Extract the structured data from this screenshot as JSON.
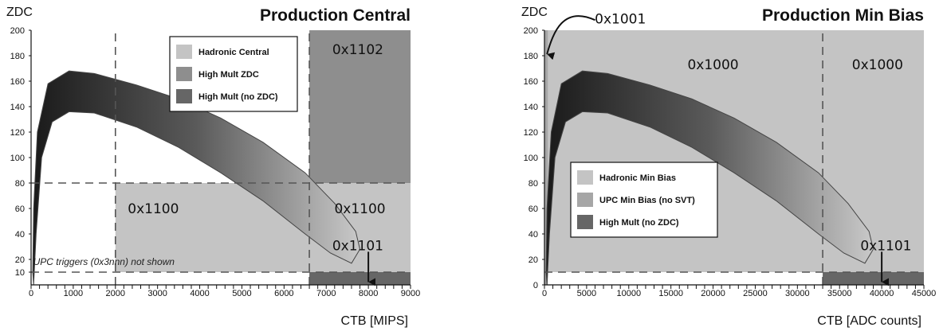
{
  "chart_data": [
    {
      "type": "area",
      "title": "Production Central",
      "xlabel": "CTB [MIPS]",
      "ylabel": "ZDC",
      "xlim": [
        0,
        9000
      ],
      "ylim": [
        0,
        200
      ],
      "x_ticks": [
        "0",
        "1000",
        "2000",
        "3000",
        "4000",
        "5000",
        "6000",
        "7000",
        "8000",
        "9000"
      ],
      "y_ticks": [
        "10",
        "20",
        "40",
        "60",
        "80",
        "100",
        "120",
        "140",
        "160",
        "180",
        "200"
      ],
      "legend": {
        "position": "top-center",
        "entries": [
          {
            "label": "Hadronic Central",
            "color": "#c4c4c4"
          },
          {
            "label": "High Mult ZDC",
            "color": "#8e8e8e"
          },
          {
            "label": "High Mult (no ZDC)",
            "color": "#666666"
          }
        ]
      },
      "regions": [
        {
          "label": "0x1100",
          "x": [
            2000,
            9000
          ],
          "y": [
            10,
            80
          ],
          "color": "#c4c4c4"
        },
        {
          "label": "0x1102",
          "x": [
            6600,
            9000
          ],
          "y": [
            80,
            200
          ],
          "color": "#8e8e8e"
        },
        {
          "label": "0x1101",
          "x": [
            6600,
            9000
          ],
          "y": [
            0,
            10
          ],
          "color": "#666666"
        }
      ],
      "region_labels": [
        {
          "text": "0x1102",
          "x": 7750,
          "y": 185
        },
        {
          "text": "0x1100",
          "x": 2900,
          "y": 60
        },
        {
          "text": "0x1100",
          "x": 7800,
          "y": 60
        },
        {
          "text": "0x1101",
          "x": 7750,
          "y": 31
        }
      ],
      "arrows": [
        {
          "from": [
            8000,
            26
          ],
          "to": [
            8000,
            1
          ]
        }
      ],
      "dashed_lines": [
        {
          "x": [
            2000,
            2000
          ],
          "y": [
            0,
            200
          ]
        },
        {
          "x": [
            6600,
            6600
          ],
          "y": [
            0,
            200
          ]
        },
        {
          "x": [
            0,
            9000
          ],
          "y": [
            80,
            80
          ]
        },
        {
          "x": [
            0,
            9000
          ],
          "y": [
            10,
            10
          ]
        }
      ],
      "annotations": [
        {
          "text": "UPC triggers (0x3nnn) not shown",
          "x": 200,
          "y": 18
        }
      ],
      "band": {
        "upper": [
          [
            40,
            10
          ],
          [
            60,
            60
          ],
          [
            150,
            120
          ],
          [
            400,
            158
          ],
          [
            900,
            168
          ],
          [
            1500,
            166
          ],
          [
            2500,
            157
          ],
          [
            3500,
            146
          ],
          [
            4500,
            131
          ],
          [
            5500,
            112
          ],
          [
            6500,
            88
          ],
          [
            7200,
            64
          ],
          [
            7700,
            42
          ],
          [
            7800,
            28
          ]
        ],
        "lower": [
          [
            7600,
            17
          ],
          [
            7100,
            25
          ],
          [
            6500,
            40
          ],
          [
            5500,
            66
          ],
          [
            4500,
            88
          ],
          [
            3500,
            108
          ],
          [
            2500,
            124
          ],
          [
            1500,
            135
          ],
          [
            900,
            136
          ],
          [
            500,
            128
          ],
          [
            250,
            100
          ],
          [
            120,
            40
          ],
          [
            60,
            0
          ]
        ]
      }
    },
    {
      "type": "area",
      "title": "Production Min Bias",
      "xlabel": "CTB [ADC counts]",
      "ylabel": "ZDC",
      "xlim": [
        0,
        45000
      ],
      "ylim": [
        0,
        200
      ],
      "x_ticks": [
        "0",
        "5000",
        "10000",
        "15000",
        "20000",
        "25000",
        "30000",
        "35000",
        "40000",
        "45000"
      ],
      "y_ticks": [
        "0",
        "20",
        "40",
        "60",
        "80",
        "100",
        "120",
        "140",
        "160",
        "180",
        "200"
      ],
      "legend": {
        "position": "center-left",
        "entries": [
          {
            "label": "Hadronic Min Bias",
            "color": "#c4c4c4"
          },
          {
            "label": "UPC Min Bias (no SVT)",
            "color": "#a6a6a6"
          },
          {
            "label": "High Mult (no ZDC)",
            "color": "#666666"
          }
        ]
      },
      "regions": [
        {
          "label": "0x1000",
          "x": [
            0,
            45000
          ],
          "y": [
            10,
            200
          ],
          "color": "#c4c4c4"
        },
        {
          "label": "0x1001",
          "x": [
            0,
            400
          ],
          "y": [
            0,
            200
          ],
          "color": "#a6a6a6"
        },
        {
          "label": "0x1101",
          "x": [
            33000,
            45000
          ],
          "y": [
            0,
            10
          ],
          "color": "#666666"
        }
      ],
      "region_labels": [
        {
          "text": "0x1001",
          "x": 9000,
          "y": 209
        },
        {
          "text": "0x1000",
          "x": 20000,
          "y": 173
        },
        {
          "text": "0x1000",
          "x": 39500,
          "y": 173
        },
        {
          "text": "0x1101",
          "x": 40500,
          "y": 31
        }
      ],
      "arrows": [
        {
          "from": [
            40000,
            26
          ],
          "to": [
            40000,
            1
          ]
        }
      ],
      "curved_arrow": {
        "from": [
          6000,
          208
        ],
        "to": [
          300,
          180
        ]
      },
      "dashed_lines": [
        {
          "x": [
            33000,
            33000
          ],
          "y": [
            0,
            200
          ]
        },
        {
          "x": [
            0,
            45000
          ],
          "y": [
            10,
            10
          ]
        }
      ],
      "band": {
        "upper": [
          [
            200,
            10
          ],
          [
            300,
            60
          ],
          [
            800,
            120
          ],
          [
            2000,
            158
          ],
          [
            4500,
            168
          ],
          [
            7500,
            166
          ],
          [
            12500,
            157
          ],
          [
            17500,
            146
          ],
          [
            22500,
            131
          ],
          [
            27500,
            112
          ],
          [
            32500,
            88
          ],
          [
            36000,
            64
          ],
          [
            38500,
            42
          ],
          [
            39000,
            28
          ]
        ],
        "lower": [
          [
            38000,
            17
          ],
          [
            35500,
            25
          ],
          [
            32500,
            40
          ],
          [
            27500,
            66
          ],
          [
            22500,
            88
          ],
          [
            17500,
            108
          ],
          [
            12500,
            124
          ],
          [
            7500,
            135
          ],
          [
            4500,
            136
          ],
          [
            2500,
            128
          ],
          [
            1250,
            100
          ],
          [
            600,
            40
          ],
          [
            300,
            0
          ]
        ]
      }
    }
  ]
}
